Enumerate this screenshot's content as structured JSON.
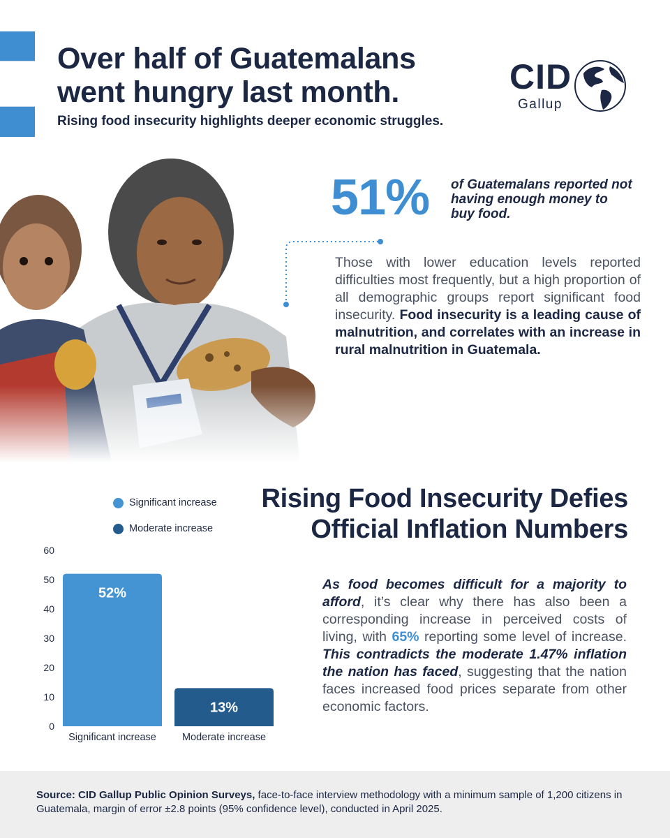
{
  "header": {
    "headline": "Over half of Guatemalans went hungry last month.",
    "subhead": "Rising food insecurity highlights deeper economic struggles."
  },
  "logo": {
    "name": "CID",
    "subname": "Gallup",
    "icon": "globe-icon"
  },
  "stat": {
    "number": "51%",
    "caption": "of Guatemalans reported not having enough money to buy food."
  },
  "paragraph1": {
    "plain": "Those with lower education levels reported difficulties most frequently, but a high proportion of all demographic groups report significant food insecurity.",
    "bold": "Food insecurity is a leading cause of malnutrition, and correlates with an increase in rural malnutrition in Guatemala."
  },
  "section": {
    "title": "Rising Food Insecurity Defies Official Inflation Numbers"
  },
  "paragraph2": {
    "part1_em": "As food becomes difficult for a majority to afford",
    "part2": ", it’s clear why there has also been a corresponding increase in perceived costs of living, with ",
    "part3_hl": "65%",
    "part4": " reporting some level of increase. ",
    "part5_em": "This contradicts the moderate 1.47% inflation the nation has faced",
    "part6": ", suggesting that the nation faces increased food prices separate from other economic factors."
  },
  "chart_data": {
    "type": "bar",
    "categories": [
      "Significant increase",
      "Moderate increase"
    ],
    "values": [
      52,
      13
    ],
    "data_labels": [
      "52%",
      "13%"
    ],
    "colors": [
      "#4493d3",
      "#235b8c"
    ],
    "legend": [
      "Significant increase",
      "Moderate increase"
    ],
    "legend_placement": "top",
    "ylim": [
      0,
      60
    ],
    "yticks": [
      0,
      10,
      20,
      30,
      40,
      50,
      60
    ],
    "grid": false
  },
  "footer": {
    "source_bold": "Source: CID Gallup Public Opinion Surveys,",
    "source_rest": " face-to-face interview methodology with a minimum sample of 1,200 citizens in Guatemala, margin of error ±2.8 points (95% confidence level), conducted in April 2025."
  }
}
